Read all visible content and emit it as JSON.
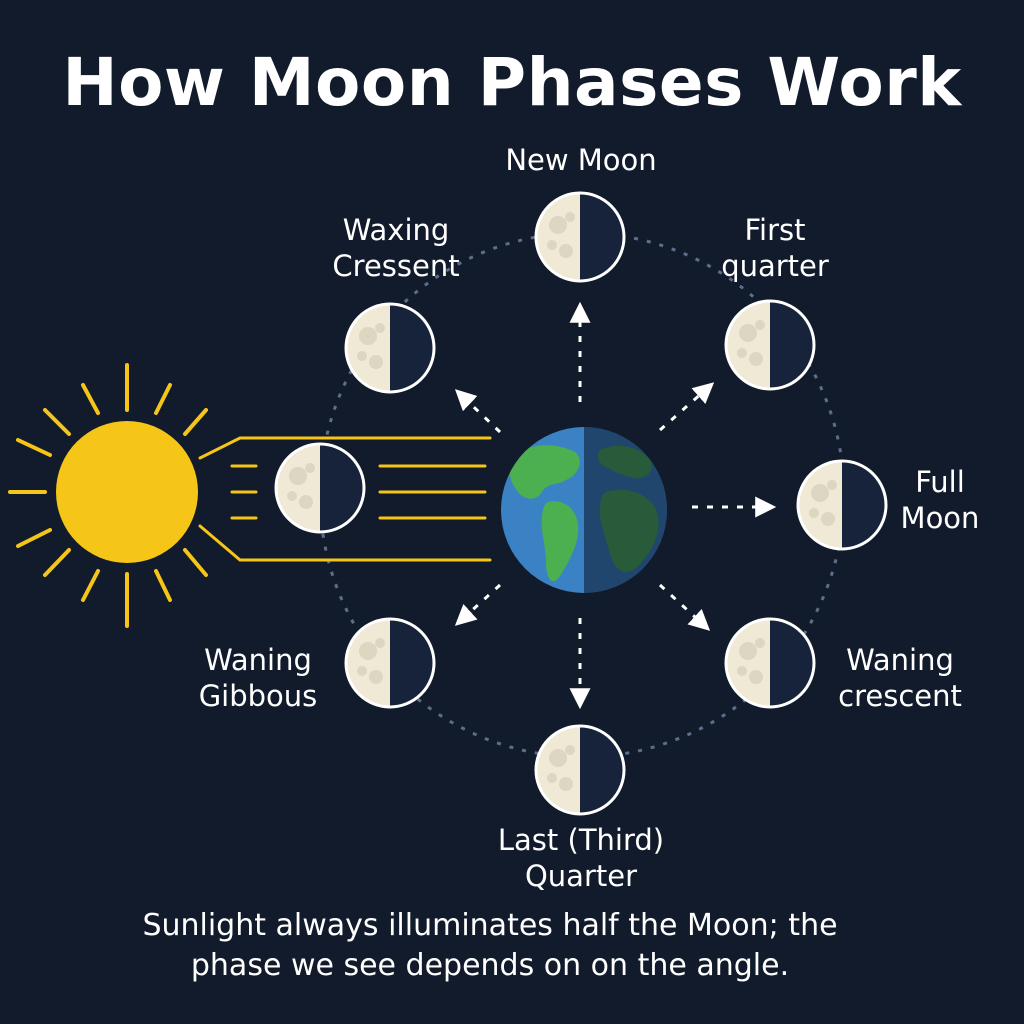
{
  "title": "How Moon Phases Work",
  "caption": {
    "line1": "Sunlight always illuminates half the Moon; the",
    "line2": "phase we see depends on on the angle."
  },
  "labels": {
    "new_moon": [
      "New Moon"
    ],
    "waxing_crescent": [
      "Waxing",
      "Cressent"
    ],
    "first_quarter": [
      "First",
      "quarter"
    ],
    "full_moon": [
      "Full",
      "Moon"
    ],
    "waning_crescent": [
      "Waning",
      "crescent"
    ],
    "last_quarter": [
      "Last (Third)",
      "Quarter"
    ],
    "waning_gibbous": [
      "Waning",
      "Gibbous"
    ]
  },
  "colors": {
    "background": "#121b2b",
    "sun": "#f5c518",
    "sun_rays": "#f5c518",
    "moon_lit": "#efe9d6",
    "moon_dark": "#16233a",
    "ocean": "#3b82c4",
    "land": "#4caf50",
    "orbit": "#5d6e8a",
    "arrows": "#ffffff"
  },
  "icons": {
    "sun": "sun-icon",
    "earth": "earth-icon",
    "moon": "moon-icon"
  }
}
